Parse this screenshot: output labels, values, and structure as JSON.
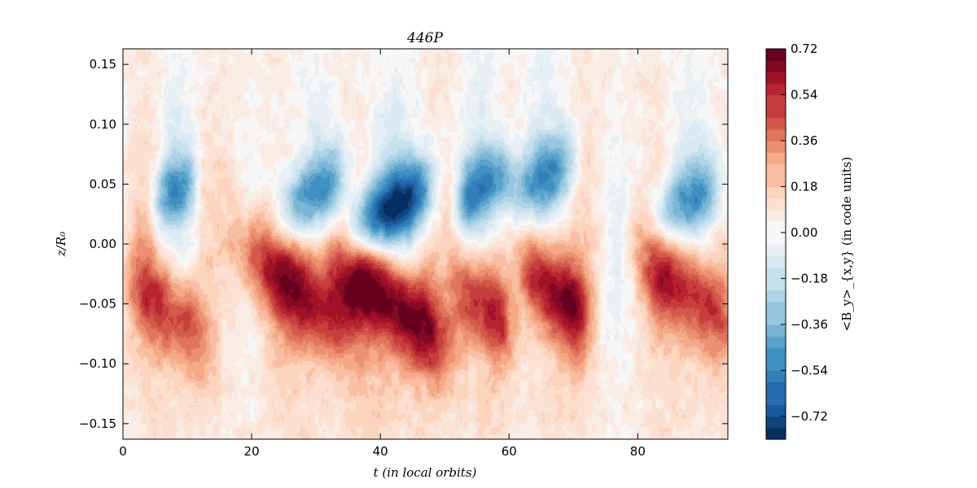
{
  "chart_data": {
    "type": "heatmap",
    "title": "446P",
    "xlabel": "t (in local orbits)",
    "ylabel": "z/R₀",
    "xlim": [
      0,
      94
    ],
    "ylim": [
      -0.163,
      0.163
    ],
    "xticks": [
      0,
      20,
      40,
      60,
      80
    ],
    "xtick_labels": [
      "0",
      "20",
      "40",
      "60",
      "80"
    ],
    "yticks": [
      -0.15,
      -0.1,
      -0.05,
      0.0,
      0.05,
      0.1,
      0.15
    ],
    "ytick_labels": [
      "−0.15",
      "−0.10",
      "−0.05",
      "0.00",
      "0.05",
      "0.10",
      "0.15"
    ],
    "colorbar": {
      "label": "<B_y>_{x,y} (in code units)",
      "range": [
        -0.81,
        0.72
      ],
      "colormap": "RdBu_r",
      "ticks": [
        0.72,
        0.54,
        0.36,
        0.18,
        0.0,
        -0.18,
        -0.36,
        -0.54,
        -0.72
      ],
      "tick_labels": [
        "0.72",
        "0.54",
        "0.36",
        "0.18",
        "0.00",
        "−0.18",
        "−0.36",
        "−0.54",
        "−0.72"
      ],
      "colors": [
        "#053061",
        "#2166ac",
        "#4393c3",
        "#92c5de",
        "#d1e5f0",
        "#f7f7f7",
        "#fddbc7",
        "#f4a582",
        "#d6604d",
        "#b2182b",
        "#67001f"
      ]
    },
    "features": [
      {
        "kind": "positive_band",
        "t_start": 1,
        "t_end": 13,
        "z_center": -0.055,
        "peak": 0.45
      },
      {
        "kind": "positive_band",
        "t_start": 18,
        "t_end": 35,
        "z_center": -0.035,
        "peak": 0.55
      },
      {
        "kind": "positive_band",
        "t_start": 32,
        "t_end": 50,
        "z_center": -0.045,
        "peak": 0.68
      },
      {
        "kind": "positive_band",
        "t_start": 51,
        "t_end": 60,
        "z_center": -0.05,
        "peak": 0.5
      },
      {
        "kind": "positive_band",
        "t_start": 62,
        "t_end": 72,
        "z_center": -0.04,
        "peak": 0.6
      },
      {
        "kind": "positive_band",
        "t_start": 80,
        "t_end": 94,
        "z_center": -0.035,
        "peak": 0.5
      },
      {
        "kind": "negative_band",
        "t_start": 5,
        "t_end": 11,
        "z_center": 0.045,
        "peak": -0.45
      },
      {
        "kind": "negative_band",
        "t_start": 24,
        "t_end": 34,
        "z_center": 0.04,
        "peak": -0.5
      },
      {
        "kind": "negative_band",
        "t_start": 35,
        "t_end": 48,
        "z_center": 0.03,
        "peak": -0.72
      },
      {
        "kind": "negative_band",
        "t_start": 52,
        "t_end": 60,
        "z_center": 0.05,
        "peak": -0.55
      },
      {
        "kind": "negative_band",
        "t_start": 60,
        "t_end": 70,
        "z_center": 0.055,
        "peak": -0.5
      },
      {
        "kind": "negative_band",
        "t_start": 82,
        "t_end": 93,
        "z_center": 0.035,
        "peak": -0.45
      }
    ]
  }
}
